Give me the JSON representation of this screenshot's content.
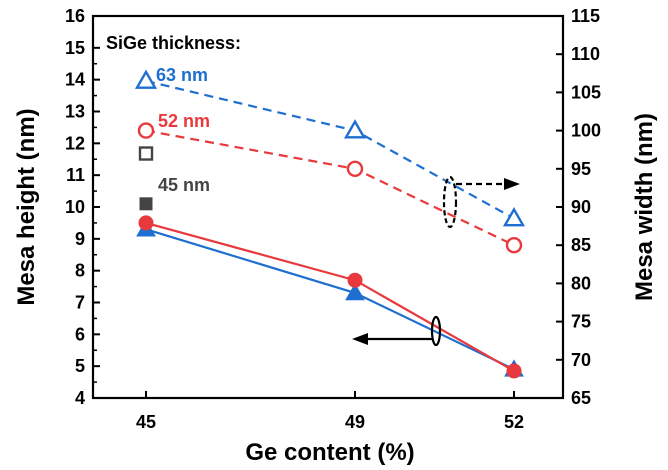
{
  "chart_data": {
    "type": "line",
    "xlabel": "Ge content (%)",
    "ylabel_left": "Mesa height (nm)",
    "ylabel_right": "Mesa width (nm)",
    "categories": [
      "45",
      "49",
      "52"
    ],
    "ylim_left": [
      4,
      16
    ],
    "yticks_left": [
      4,
      5,
      6,
      7,
      8,
      9,
      10,
      11,
      12,
      13,
      14,
      15,
      16
    ],
    "ylim_right": [
      65,
      115
    ],
    "yticks_right": [
      65,
      70,
      75,
      80,
      85,
      90,
      95,
      100,
      105,
      110,
      115
    ],
    "legend_title": "SiGe thickness:",
    "series": [
      {
        "name": "63 nm",
        "axis": "left",
        "marker": "filled-triangle",
        "line": "solid",
        "color": "#1f6fd1",
        "values": [
          9.3,
          7.3,
          4.9
        ]
      },
      {
        "name": "52 nm",
        "axis": "left",
        "marker": "filled-circle",
        "line": "solid",
        "color": "#e8393c",
        "values": [
          9.5,
          7.7,
          4.85
        ]
      },
      {
        "name": "63 nm",
        "axis": "right",
        "marker": "open-triangle",
        "line": "dashed",
        "color": "#1f6fd1",
        "values": [
          106.5,
          100,
          88.5
        ]
      },
      {
        "name": "52 nm",
        "axis": "right",
        "marker": "open-circle",
        "line": "dashed",
        "color": "#e8393c",
        "values": [
          100,
          95,
          85
        ]
      },
      {
        "name": "45 nm",
        "axis": "left",
        "marker": "filled-square",
        "line": "none",
        "color": "#444444",
        "values": [
          10.1,
          null,
          null
        ]
      },
      {
        "name": "45 nm",
        "axis": "right",
        "marker": "open-square",
        "line": "none",
        "color": "#444444",
        "values": [
          97,
          null,
          null
        ]
      }
    ],
    "annotations": {
      "legend_63": "63 nm",
      "legend_52": "52 nm",
      "legend_45": "45 nm",
      "arrow_right_axis": "right",
      "arrow_left_axis": "left"
    },
    "colors": {
      "blue": "#1f6fd1",
      "red": "#e8393c",
      "gray": "#444444"
    },
    "grid": false
  }
}
